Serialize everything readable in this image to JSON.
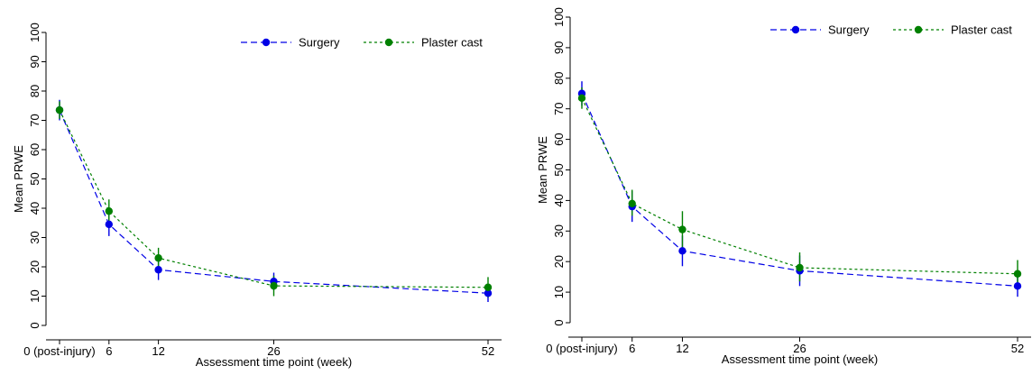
{
  "chart_data": [
    {
      "type": "line",
      "x": [
        0,
        6,
        12,
        26,
        52
      ],
      "x_tick_labels": [
        "0 (post-injury)",
        "6",
        "12",
        "26",
        "52"
      ],
      "xlabel": "Assessment time point (week)",
      "ylabel": "Mean PRWE",
      "ylim": [
        0,
        100
      ],
      "y_ticks": [
        0,
        10,
        20,
        30,
        40,
        50,
        60,
        70,
        80,
        90,
        100
      ],
      "grid": false,
      "legend_position": "top-right",
      "series": [
        {
          "name": "Surgery",
          "color": "#0000e6",
          "line_style": "dashed",
          "values": [
            73.5,
            34.5,
            19,
            15,
            11
          ],
          "ci_low": [
            70,
            30.5,
            15.5,
            12,
            8
          ],
          "ci_high": [
            77,
            38.5,
            22.5,
            18,
            14
          ]
        },
        {
          "name": "Plaster cast",
          "color": "#008000",
          "line_style": "dotted",
          "values": [
            73.5,
            39,
            23,
            13.5,
            13
          ],
          "ci_low": [
            70.5,
            35,
            19.5,
            10,
            9.5
          ],
          "ci_high": [
            76.5,
            43,
            26.5,
            17,
            16.5
          ]
        }
      ]
    },
    {
      "type": "line",
      "x": [
        0,
        6,
        12,
        26,
        52
      ],
      "x_tick_labels": [
        "0 (post-injury)",
        "6",
        "12",
        "26",
        "52"
      ],
      "xlabel": "Assessment time point (week)",
      "ylabel": "Mean PRWE",
      "ylim": [
        0,
        100
      ],
      "y_ticks": [
        0,
        10,
        20,
        30,
        40,
        50,
        60,
        70,
        80,
        90,
        100
      ],
      "grid": false,
      "legend_position": "top-right",
      "series": [
        {
          "name": "Surgery",
          "color": "#0000e6",
          "line_style": "dashed",
          "values": [
            75,
            38,
            23.5,
            17,
            12
          ],
          "ci_low": [
            71,
            33,
            18.5,
            12,
            8.5
          ],
          "ci_high": [
            79,
            43,
            28.5,
            22,
            15.5
          ]
        },
        {
          "name": "Plaster cast",
          "color": "#008000",
          "line_style": "dotted",
          "values": [
            73.5,
            39,
            30.5,
            18,
            16
          ],
          "ci_low": [
            70,
            35,
            24.5,
            13.5,
            11.5
          ],
          "ci_high": [
            77,
            43.5,
            36.5,
            23,
            20.5
          ]
        }
      ]
    }
  ]
}
